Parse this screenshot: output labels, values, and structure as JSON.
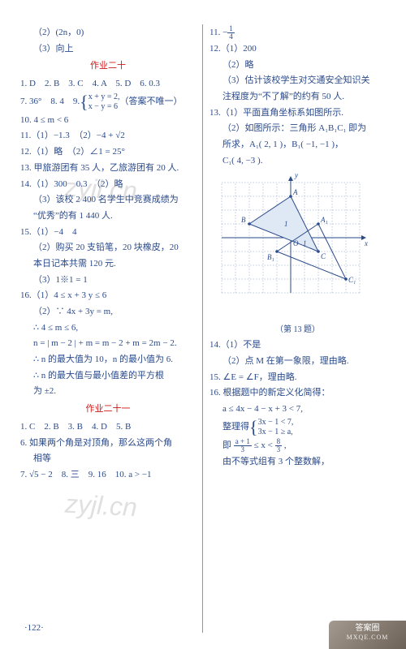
{
  "left": {
    "l1": "（2）(2n，0)",
    "l2": "（3）向上",
    "title20": "作业二十",
    "q1": "1. D　2. B　3. C　4. A　5. D　6. 0.3",
    "q7a": "7. 36°　8. 4　9.",
    "q7brace_top": "x + y = 2,",
    "q7brace_bot": "x − y = 6",
    "q7b": "（答案不唯一）",
    "q10": "10. 4 ≤ m < 6",
    "q11": "11.（1）−1.3　（2）−4 + √2",
    "q12": "12.（1）略　（2）∠1 = 25°",
    "q13": "13. 甲旅游团有 35 人，乙旅游团有 20 人.",
    "q14a": "14.（1）300　0.3　（2）略",
    "q14b": "（3）该校 2 400 名学生中竞赛成绩为",
    "q14c": "“优秀”的有 1 440 人.",
    "q15a": "15.（1）−4　4",
    "q15b": "（2）购买 20 支铅笔，20 块橡皮，20",
    "q15c": "本日记本共需 120 元.",
    "q15d": "（3）1※1 = 1",
    "q16a": "16.（1）4 ≤ x + 3 y ≤ 6",
    "q16b": "（2）∵ 4x + 3y = m,",
    "q16c": "∴ 4 ≤ m ≤ 6,",
    "q16d": "n = | m − 2 | + m = m − 2 + m = 2m − 2.",
    "q16e": "∴ n 的最大值为 10，n 的最小值为 6.",
    "q16f": "∴ n 的最大值与最小值差的平方根",
    "q16g": "为 ±2.",
    "title21": "作业二十一",
    "q21_1": "1. C　2. B　3. B　4. D　5. B",
    "q21_6a": "6. 如果两个角是对顶角，那么这两个角",
    "q21_6b": "相等",
    "q21_7": "7. √5 − 2　8. 三　9. 16　10. a > −1"
  },
  "right": {
    "q11pre": "11. −",
    "q11num": "1",
    "q11den": "4",
    "q12a": "12.（1）200",
    "q12b": "（2）略",
    "q12c": "（3）估计该校学生对交通安全知识关",
    "q12d": "注程度为“不了解”的约有 50 人.",
    "q13a": "13.（1）平面直角坐标系如图所示.",
    "q13b": "（2）如图所示：三角形 A₁B₁C₁ 即为",
    "q13c": "所求，A₁( 2, 1 )，B₁( −1, −1 )，",
    "q13d": "C₁( 4, −3 ).",
    "caption13": "（第 13 题）",
    "q14a": "14.（1）不是",
    "q14b": "（2）点 M 在第一象限，理由略.",
    "q15": "15. ∠E = ∠F，理由略.",
    "q16a": "16. 根据题中的新定义化简得：",
    "q16b": "a ≤ 4x − 4 − x + 3 < 7,",
    "q16c_pre": "整理得",
    "q16c_top": "3x − 1 < 7,",
    "q16c_bot": "3x − 1 ≥ a,",
    "q16d_pre": "即",
    "q16d_num1": "a + 1",
    "q16d_den1": "3",
    "q16d_mid": " ≤ x < ",
    "q16d_num2": "8",
    "q16d_den2": "3",
    "q16d_post": ",",
    "q16e": "由不等式组有 3 个整数解，"
  },
  "diagram": {
    "background": "#ffffff",
    "grid_color": "#5b7db0",
    "axis_color": "#2a4a8a",
    "tri_A": {
      "fill": "#dfe8f5",
      "stroke": "#2a4a8a"
    },
    "tri_B": {
      "fill": "none",
      "stroke": "#2a4a8a"
    },
    "xlim": [
      -5,
      5
    ],
    "ylim": [
      -4,
      4
    ],
    "cell": 17,
    "points_A": {
      "A": [
        0,
        3
      ],
      "B": [
        -3,
        1
      ],
      "C": [
        2,
        -1
      ]
    },
    "points_B": {
      "A1": [
        2,
        1
      ],
      "B1": [
        -1,
        -1
      ],
      "C1": [
        4,
        -3
      ]
    },
    "origin_label": "O",
    "axis_x": "x",
    "axis_y": "y"
  },
  "page_number": "·122·",
  "watermark": "zyjl.cn",
  "badge_top": "答案圈",
  "badge_bottom": "MXQE.COM"
}
